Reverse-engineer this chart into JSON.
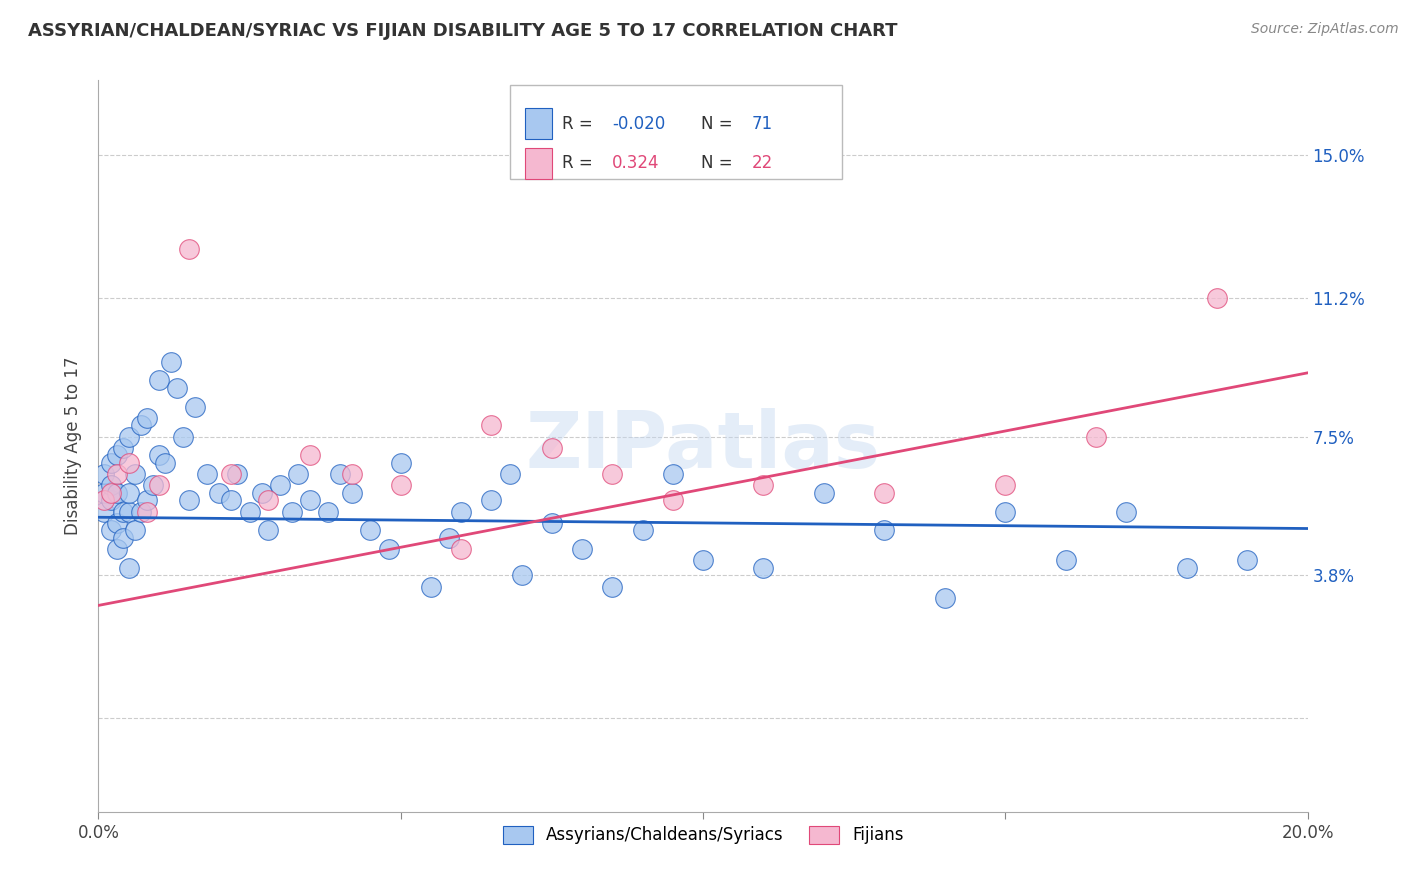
{
  "title": "ASSYRIAN/CHALDEAN/SYRIAC VS FIJIAN DISABILITY AGE 5 TO 17 CORRELATION CHART",
  "source": "Source: ZipAtlas.com",
  "ylabel": "Disability Age 5 to 17",
  "xlim": [
    0.0,
    0.2
  ],
  "ylim": [
    -0.025,
    0.17
  ],
  "yticks": [
    0.0,
    0.038,
    0.075,
    0.112,
    0.15
  ],
  "ytick_labels": [
    "",
    "3.8%",
    "7.5%",
    "11.2%",
    "15.0%"
  ],
  "xticks": [
    0.0,
    0.05,
    0.1,
    0.15,
    0.2
  ],
  "xtick_labels": [
    "0.0%",
    "",
    "",
    "",
    "20.0%"
  ],
  "r_assyrian": -0.02,
  "n_assyrian": 71,
  "r_fijian": 0.324,
  "n_fijian": 22,
  "color_assyrian": "#a8c8f0",
  "color_fijian": "#f5b8d0",
  "line_color_assyrian": "#2060c0",
  "line_color_fijian": "#e04878",
  "watermark": "ZIPatlas",
  "legend_label_1": "Assyrians/Chaldeans/Syriacs",
  "legend_label_2": "Fijians",
  "ass_x": [
    0.001,
    0.001,
    0.001,
    0.002,
    0.002,
    0.002,
    0.002,
    0.003,
    0.003,
    0.003,
    0.003,
    0.004,
    0.004,
    0.004,
    0.005,
    0.005,
    0.005,
    0.005,
    0.006,
    0.006,
    0.007,
    0.007,
    0.008,
    0.008,
    0.009,
    0.01,
    0.01,
    0.011,
    0.012,
    0.013,
    0.014,
    0.015,
    0.016,
    0.018,
    0.02,
    0.022,
    0.023,
    0.025,
    0.027,
    0.028,
    0.03,
    0.032,
    0.033,
    0.035,
    0.038,
    0.04,
    0.042,
    0.045,
    0.048,
    0.05,
    0.055,
    0.058,
    0.06,
    0.065,
    0.068,
    0.07,
    0.075,
    0.08,
    0.085,
    0.09,
    0.095,
    0.1,
    0.11,
    0.12,
    0.13,
    0.14,
    0.15,
    0.16,
    0.17,
    0.18,
    0.19
  ],
  "ass_y": [
    0.055,
    0.06,
    0.065,
    0.05,
    0.058,
    0.062,
    0.068,
    0.045,
    0.052,
    0.06,
    0.07,
    0.048,
    0.055,
    0.072,
    0.04,
    0.055,
    0.06,
    0.075,
    0.05,
    0.065,
    0.055,
    0.078,
    0.058,
    0.08,
    0.062,
    0.07,
    0.09,
    0.068,
    0.095,
    0.088,
    0.075,
    0.058,
    0.083,
    0.065,
    0.06,
    0.058,
    0.065,
    0.055,
    0.06,
    0.05,
    0.062,
    0.055,
    0.065,
    0.058,
    0.055,
    0.065,
    0.06,
    0.05,
    0.045,
    0.068,
    0.035,
    0.048,
    0.055,
    0.058,
    0.065,
    0.038,
    0.052,
    0.045,
    0.035,
    0.05,
    0.065,
    0.042,
    0.04,
    0.06,
    0.05,
    0.032,
    0.055,
    0.042,
    0.055,
    0.04,
    0.042
  ],
  "fij_x": [
    0.001,
    0.002,
    0.003,
    0.005,
    0.008,
    0.01,
    0.015,
    0.022,
    0.028,
    0.035,
    0.042,
    0.05,
    0.06,
    0.065,
    0.075,
    0.085,
    0.095,
    0.11,
    0.13,
    0.15,
    0.165,
    0.185
  ],
  "fij_y": [
    0.058,
    0.06,
    0.065,
    0.068,
    0.055,
    0.062,
    0.125,
    0.065,
    0.058,
    0.07,
    0.065,
    0.062,
    0.045,
    0.078,
    0.072,
    0.065,
    0.058,
    0.062,
    0.06,
    0.062,
    0.075,
    0.112
  ],
  "ass_line_x0": 0.0,
  "ass_line_y0": 0.0535,
  "ass_line_x1": 0.2,
  "ass_line_y1": 0.0505,
  "fij_line_x0": 0.0,
  "fij_line_y0": 0.03,
  "fij_line_x1": 0.2,
  "fij_line_y1": 0.092
}
